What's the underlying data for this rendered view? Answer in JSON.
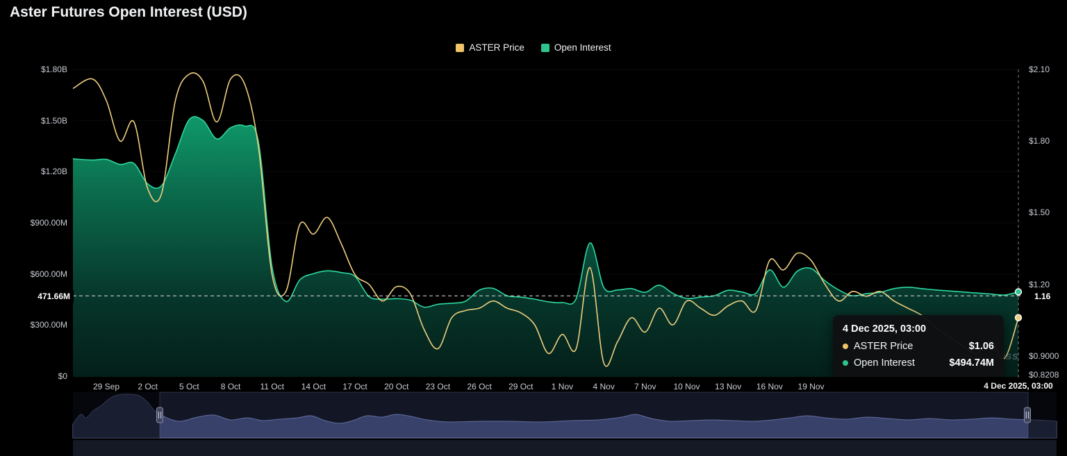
{
  "page": {
    "title": "Aster Futures Open Interest (USD)",
    "background": "#000000"
  },
  "legend": [
    {
      "label": "ASTER Price",
      "color": "#EFC368"
    },
    {
      "label": "Open Interest",
      "color": "#2EC48C"
    }
  ],
  "axes": {
    "left": {
      "ticks": [
        "$1.80B",
        "$1.50B",
        "$1.20B",
        "$900.00M",
        "$600.00M",
        "$300.00M",
        "$0"
      ]
    },
    "right": {
      "ticks": [
        "$2.10",
        "$1.80",
        "$1.50",
        "$1.20",
        "$0.9000",
        "$0.8208"
      ]
    },
    "x": {
      "ticks": [
        "29 Sep",
        "2 Oct",
        "5 Oct",
        "8 Oct",
        "11 Oct",
        "14 Oct",
        "17 Oct",
        "20 Oct",
        "23 Oct",
        "26 Oct",
        "29 Oct",
        "1 Nov",
        "4 Nov",
        "7 Nov",
        "10 Nov",
        "13 Nov",
        "16 Nov",
        "19 Nov"
      ],
      "last_label": "4 Dec 2025, 03:00"
    }
  },
  "crosshair": {
    "left_value": "471.66M",
    "right_value": "1.16"
  },
  "tooltip": {
    "date": "4 Dec 2025, 03:00",
    "rows": [
      {
        "label": "ASTER Price",
        "value": "$1.06",
        "color": "#EFC368"
      },
      {
        "label": "Open Interest",
        "value": "$494.74M",
        "color": "#2EC48C"
      }
    ]
  },
  "watermark": "coinglass",
  "chart_data": {
    "type": "area",
    "title": "Aster Futures Open Interest (USD)",
    "legend_position": "top",
    "grid": false,
    "left_axis": {
      "unit": "USD",
      "range_millions": [
        0,
        1800
      ],
      "ticks": [
        "$1.80B",
        "$1.50B",
        "$1.20B",
        "$900.00M",
        "$600.00M",
        "$300.00M",
        "$0"
      ]
    },
    "right_axis": {
      "unit": "USD",
      "range": [
        0.8208,
        2.1
      ],
      "ticks": [
        "$2.10",
        "$1.80",
        "$1.50",
        "$1.20",
        "$0.9000",
        "$0.8208"
      ]
    },
    "current": {
      "date": "4 Dec 2025, 03:00",
      "aster_price": "$1.06",
      "open_interest": "$494.74M",
      "crosshair_open_interest": "471.66M",
      "crosshair_price": "1.16"
    },
    "x": [
      "27 Sep",
      "28 Sep",
      "29 Sep",
      "30 Sep",
      "1 Oct",
      "2 Oct",
      "3 Oct",
      "4 Oct",
      "5 Oct",
      "6 Oct",
      "7 Oct",
      "8 Oct",
      "9 Oct",
      "10 Oct",
      "11 Oct",
      "12 Oct",
      "13 Oct",
      "14 Oct",
      "15 Oct",
      "16 Oct",
      "17 Oct",
      "18 Oct",
      "19 Oct",
      "20 Oct",
      "21 Oct",
      "22 Oct",
      "23 Oct",
      "24 Oct",
      "25 Oct",
      "26 Oct",
      "27 Oct",
      "28 Oct",
      "29 Oct",
      "30 Oct",
      "31 Oct",
      "1 Nov",
      "2 Nov",
      "3 Nov",
      "4 Nov",
      "5 Nov",
      "6 Nov",
      "7 Nov",
      "8 Nov",
      "9 Nov",
      "10 Nov",
      "11 Nov",
      "12 Nov",
      "13 Nov",
      "14 Nov",
      "15 Nov",
      "16 Nov",
      "17 Nov",
      "18 Nov",
      "19 Nov",
      "20 Nov",
      "21 Nov",
      "22 Nov",
      "23 Nov",
      "24 Nov",
      "25 Nov",
      "26 Nov",
      "27 Nov",
      "28 Nov",
      "29 Nov",
      "30 Nov",
      "1 Dec",
      "2 Dec",
      "3 Dec",
      "4 Dec"
    ],
    "series": [
      {
        "name": "ASTER Price",
        "type": "line",
        "y_axis": "right",
        "color": "#EFCF7F",
        "values": [
          2.02,
          2.06,
          1.97,
          1.8,
          1.88,
          1.6,
          1.58,
          1.97,
          2.08,
          2.05,
          1.88,
          2.06,
          2.04,
          1.78,
          1.24,
          1.17,
          1.45,
          1.41,
          1.48,
          1.37,
          1.24,
          1.2,
          1.13,
          1.19,
          1.16,
          1.01,
          0.93,
          1.06,
          1.09,
          1.1,
          1.13,
          1.1,
          1.08,
          1.03,
          0.91,
          0.99,
          0.93,
          1.27,
          0.87,
          0.96,
          1.06,
          1.0,
          1.1,
          1.03,
          1.13,
          1.1,
          1.07,
          1.11,
          1.13,
          1.09,
          1.3,
          1.26,
          1.33,
          1.3,
          1.2,
          1.13,
          1.17,
          1.15,
          1.17,
          1.13,
          1.1,
          1.07,
          1.02,
          0.98,
          0.94,
          0.91,
          0.96,
          0.89,
          1.06
        ]
      },
      {
        "name": "Open Interest",
        "type": "area",
        "y_axis": "left",
        "unit": "USD millions",
        "color": "#2EC48C",
        "values": [
          1275,
          1268,
          1272,
          1242,
          1248,
          1128,
          1118,
          1305,
          1505,
          1500,
          1392,
          1458,
          1468,
          1380,
          640,
          438,
          565,
          602,
          618,
          608,
          585,
          468,
          452,
          455,
          446,
          405,
          422,
          428,
          440,
          505,
          515,
          472,
          464,
          452,
          436,
          432,
          455,
          782,
          520,
          506,
          514,
          492,
          534,
          486,
          456,
          464,
          472,
          504,
          494,
          486,
          624,
          522,
          616,
          632,
          560,
          506,
          472,
          484,
          492,
          514,
          522,
          514,
          506,
          500,
          494,
          488,
          482,
          476,
          494.74
        ]
      }
    ]
  }
}
